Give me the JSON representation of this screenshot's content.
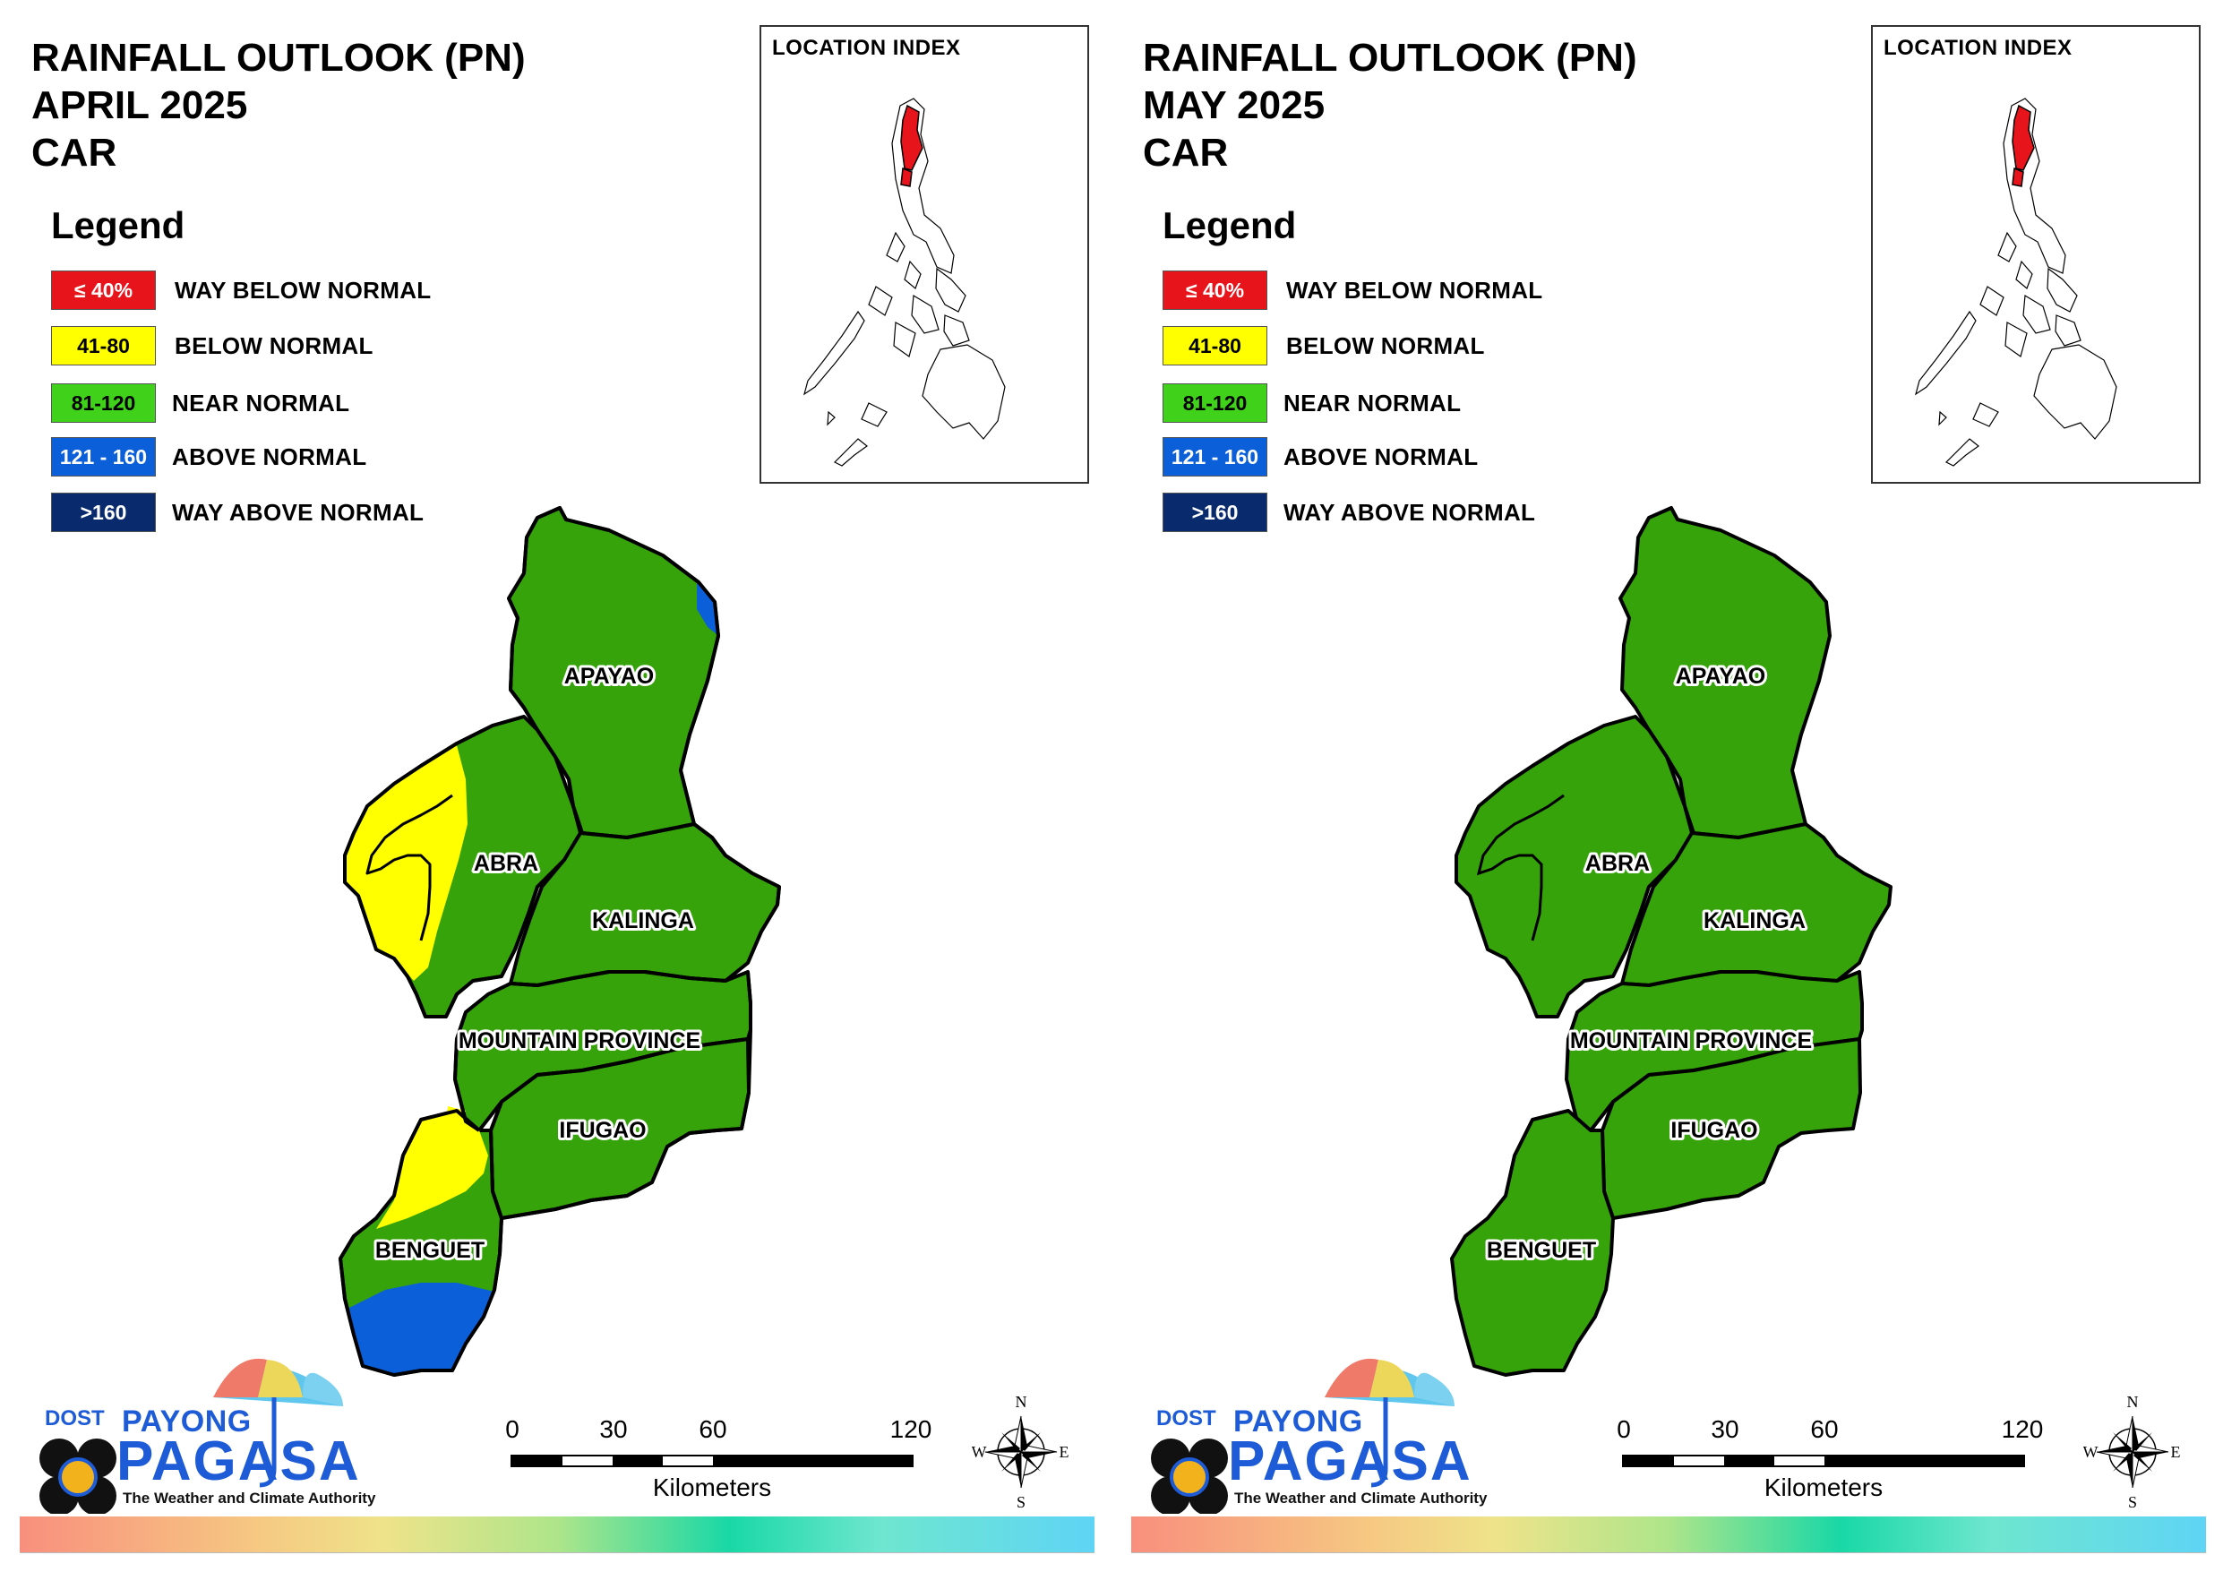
{
  "panels": [
    {
      "title_line1": "RAINFALL OUTLOOK (PN)",
      "title_line2": "APRIL 2025",
      "title_line3": "CAR",
      "outlook": {
        "APAYAO": "NEAR NORMAL",
        "ABRA": "NEAR NORMAL",
        "KALINGA": "NEAR NORMAL",
        "MOUNTAIN PROVINCE": "NEAR NORMAL",
        "IFUGAO": "NEAR NORMAL",
        "BENGUET": "NEAR NORMAL"
      }
    },
    {
      "title_line1": "RAINFALL OUTLOOK (PN)",
      "title_line2": "MAY 2025",
      "title_line3": "CAR",
      "outlook": {
        "APAYAO": "NEAR NORMAL",
        "ABRA": "NEAR NORMAL",
        "KALINGA": "NEAR NORMAL",
        "MOUNTAIN PROVINCE": "NEAR NORMAL",
        "IFUGAO": "NEAR NORMAL",
        "BENGUET": "NEAR NORMAL"
      }
    }
  ],
  "legend": {
    "title": "Legend",
    "items": [
      {
        "range": "≤ 40%",
        "label": "WAY BELOW NORMAL",
        "color": "#e8141c",
        "text_color": "#ffffff"
      },
      {
        "range": "41-80",
        "label": "BELOW NORMAL",
        "color": "#ffff00",
        "text_color": "#000000"
      },
      {
        "range": "81-120",
        "label": "NEAR NORMAL",
        "color": "#40d11a",
        "text_color": "#000000"
      },
      {
        "range": "121 - 160",
        "label": "ABOVE NORMAL",
        "color": "#0b5fd9",
        "text_color": "#ffffff"
      },
      {
        "range": ">160",
        "label": "WAY ABOVE NORMAL",
        "color": "#0a2a6e",
        "text_color": "#ffffff"
      }
    ]
  },
  "location_index": {
    "title": "LOCATION INDEX",
    "highlight_color": "#e8141c"
  },
  "provinces": [
    "APAYAO",
    "ABRA",
    "KALINGA",
    "MOUNTAIN PROVINCE",
    "IFUGAO",
    "BENGUET"
  ],
  "map_colors": {
    "near_normal": "#36a30a",
    "below_normal": "#ffff00",
    "above_normal": "#0b5fd9"
  },
  "scale_bar": {
    "labels": [
      "0",
      "30",
      "60",
      "120"
    ],
    "unit": "Kilometers"
  },
  "compass": {
    "n": "N",
    "s": "S",
    "e": "E",
    "w": "W"
  },
  "logo": {
    "dost": "DOST",
    "payong": "PAYONG",
    "pagasa": "PAGASA",
    "tagline": "The Weather and Climate Authority"
  }
}
